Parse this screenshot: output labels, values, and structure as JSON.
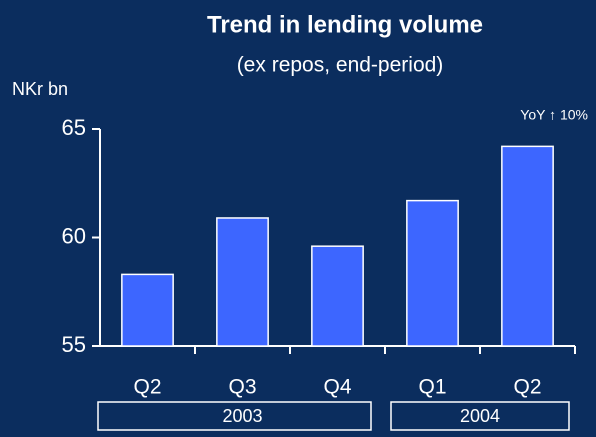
{
  "chart_data": {
    "type": "bar",
    "title": "Trend in lending volume",
    "subtitle": "(ex repos, end-period)",
    "y_label": "NKr bn",
    "annotation": "YoY ↑ 10%",
    "categories": [
      "Q2",
      "Q3",
      "Q4",
      "Q1",
      "Q2"
    ],
    "groups": [
      {
        "label": "2003",
        "categories": [
          "Q2",
          "Q3",
          "Q4"
        ]
      },
      {
        "label": "2004",
        "categories": [
          "Q1",
          "Q2"
        ]
      }
    ],
    "values": [
      58.3,
      60.9,
      59.6,
      61.7,
      64.2
    ],
    "color": "#3d66ff",
    "ylim": [
      55,
      65
    ],
    "yticks": [
      55,
      60,
      65
    ],
    "grid": false
  }
}
